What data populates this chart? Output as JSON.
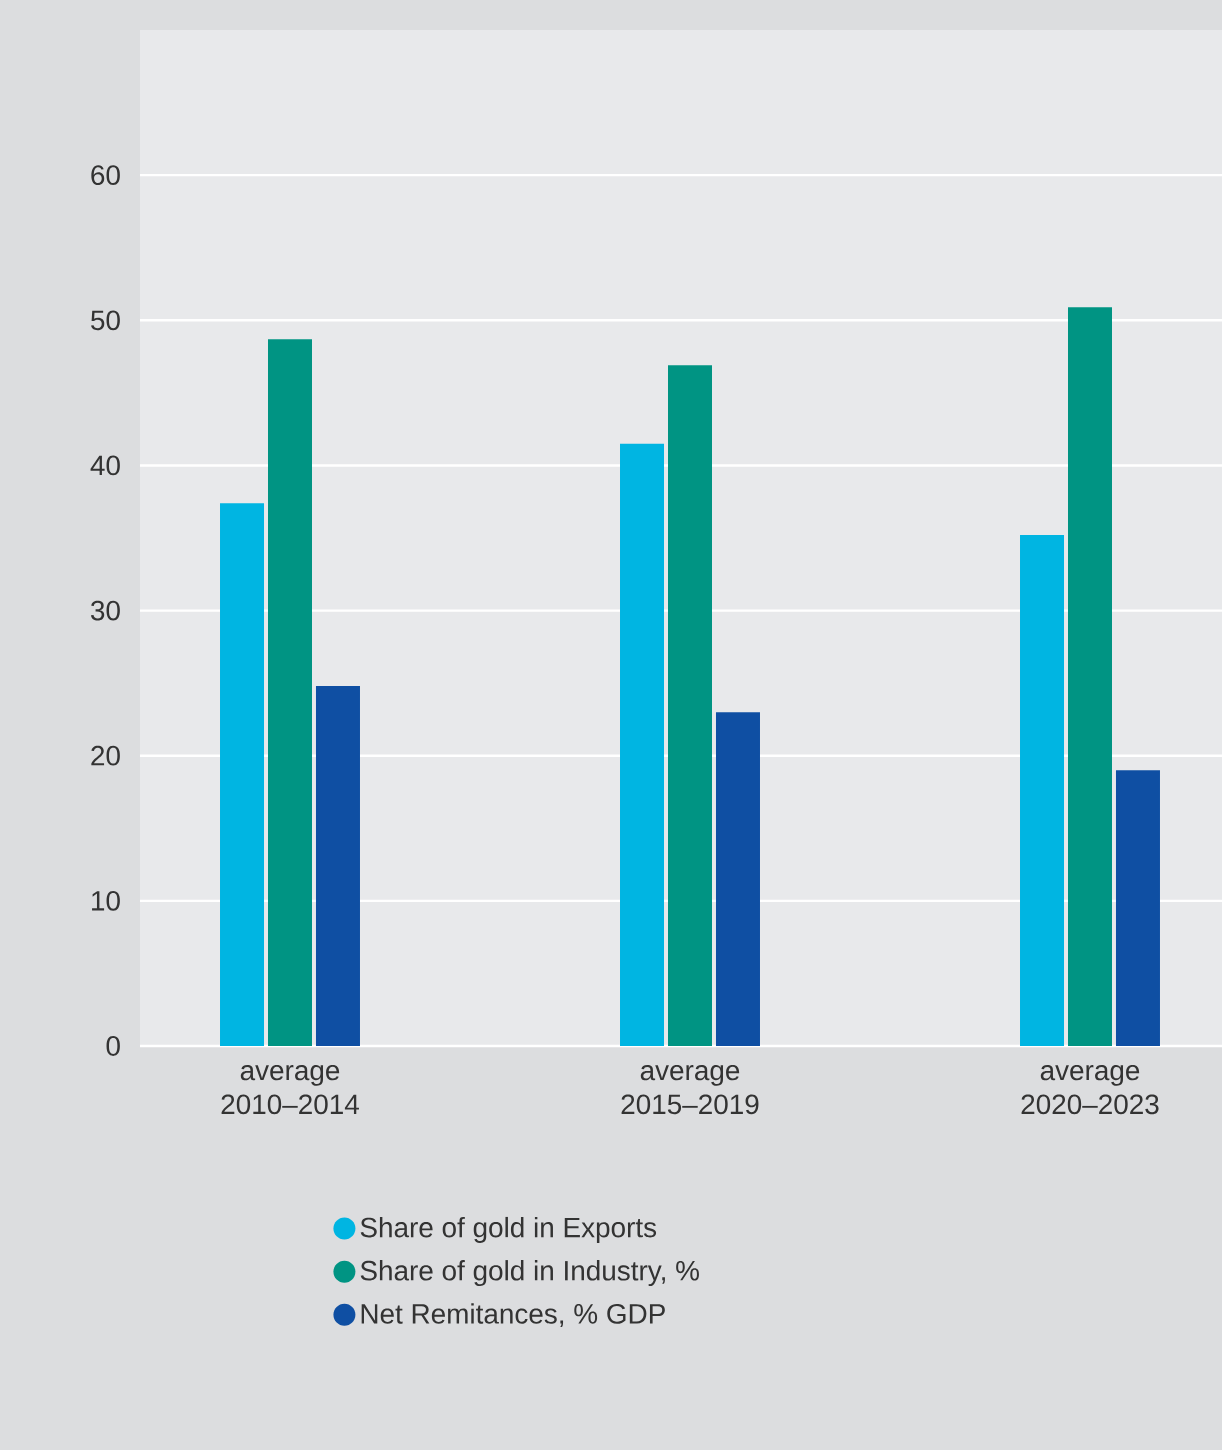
{
  "chart_data": {
    "type": "bar",
    "categories": [
      "average 2010–2014",
      "average 2015–2019",
      "average 2020–2023"
    ],
    "series": [
      {
        "name": "Share of gold in Exports",
        "color": "#00b5e2",
        "values": [
          37.4,
          41.5,
          35.2
        ]
      },
      {
        "name": "Share of gold in Industry, %",
        "color": "#009483",
        "values": [
          48.7,
          46.9,
          50.9
        ]
      },
      {
        "name": "Net Remitances, % GDP",
        "color": "#0f4fa3",
        "values": [
          24.8,
          23.0,
          19.0
        ]
      }
    ],
    "ylim": [
      0,
      70
    ],
    "yticks": [
      0,
      10,
      20,
      30,
      40,
      50,
      60
    ],
    "grid": "y",
    "legend": "bottom"
  }
}
